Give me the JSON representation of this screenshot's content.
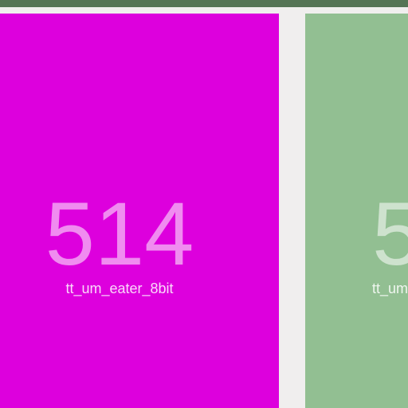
{
  "tiles": [
    {
      "number": "514",
      "label": "tt_um_eater_8bit",
      "color": "#dd00dd"
    },
    {
      "number": "5",
      "label": "tt_um",
      "color": "#92bf92"
    }
  ],
  "topbar": {
    "color": "#557455"
  }
}
